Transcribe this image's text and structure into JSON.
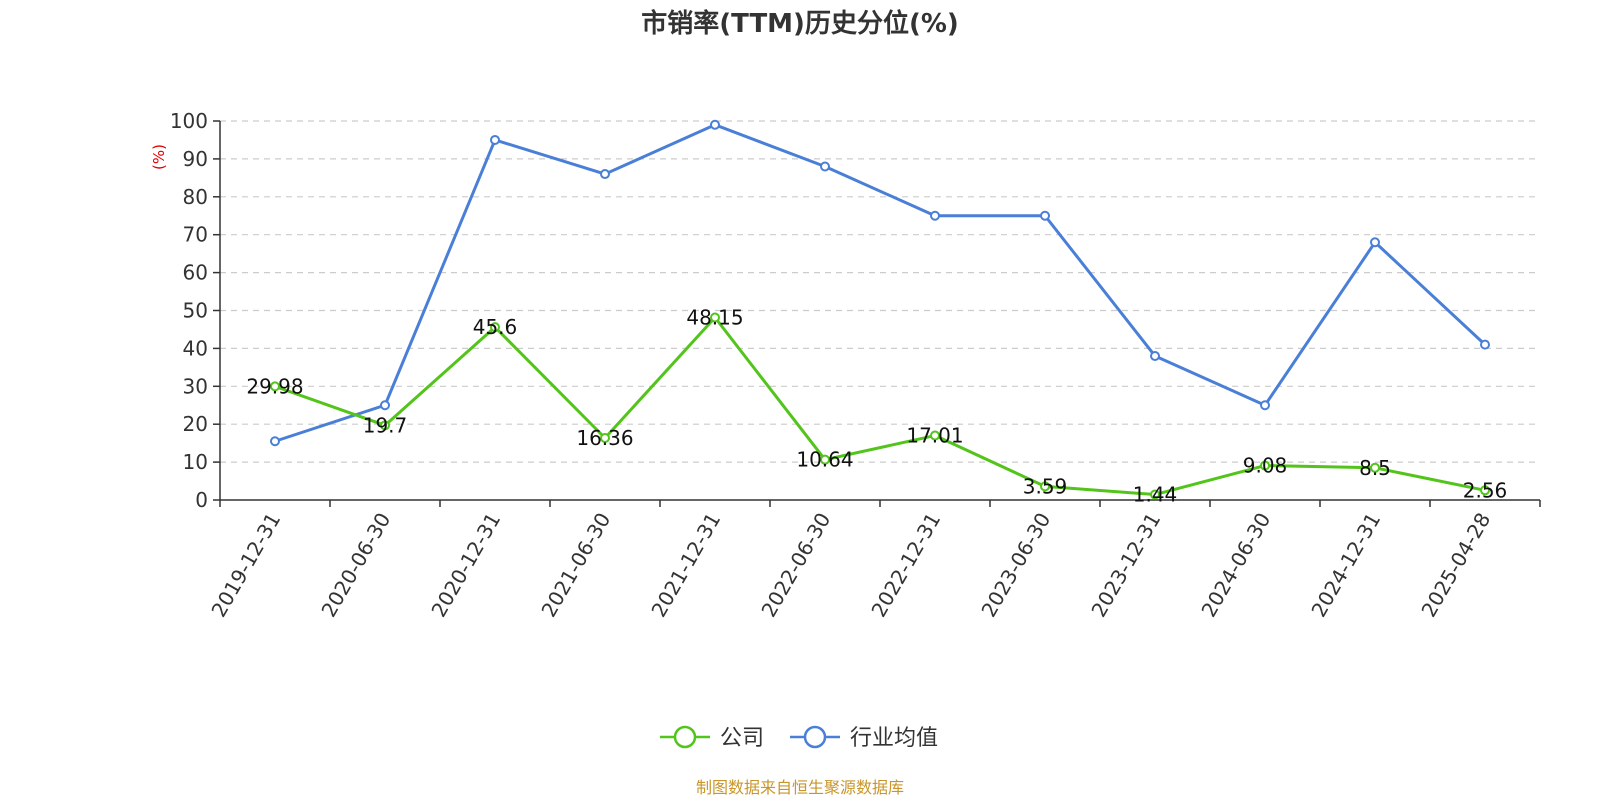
{
  "chart_data": {
    "type": "line",
    "title": "市销率(TTM)历史分位(%)",
    "ylabel": "(%)",
    "ylim": [
      0,
      100
    ],
    "yticks": [
      0,
      10,
      20,
      30,
      40,
      50,
      60,
      70,
      80,
      90,
      100
    ],
    "categories": [
      "2019-12-31",
      "2020-06-30",
      "2020-12-31",
      "2021-06-30",
      "2021-12-31",
      "2022-06-30",
      "2022-12-31",
      "2023-06-30",
      "2023-12-31",
      "2024-06-30",
      "2024-12-31",
      "2025-04-28"
    ],
    "grid": true,
    "legend_placement": "bottom-center",
    "series": [
      {
        "name": "公司",
        "color": "#52c41a",
        "values": [
          29.98,
          19.7,
          45.6,
          16.36,
          48.15,
          10.64,
          17.01,
          3.59,
          1.44,
          9.08,
          8.5,
          2.56
        ],
        "labels": [
          "29.98",
          "19.7",
          "45.6",
          "16.36",
          "48.15",
          "10.64",
          "17.01",
          "3.59",
          "1.44",
          "9.08",
          "8.5",
          "2.56"
        ]
      },
      {
        "name": "行业均值",
        "color": "#4a7fd8",
        "values": [
          15.5,
          25,
          95,
          86,
          99,
          88,
          75,
          75,
          38,
          25,
          68,
          41
        ]
      }
    ],
    "source": "制图数据来自恒生聚源数据库",
    "source_color": "#c8962a"
  }
}
